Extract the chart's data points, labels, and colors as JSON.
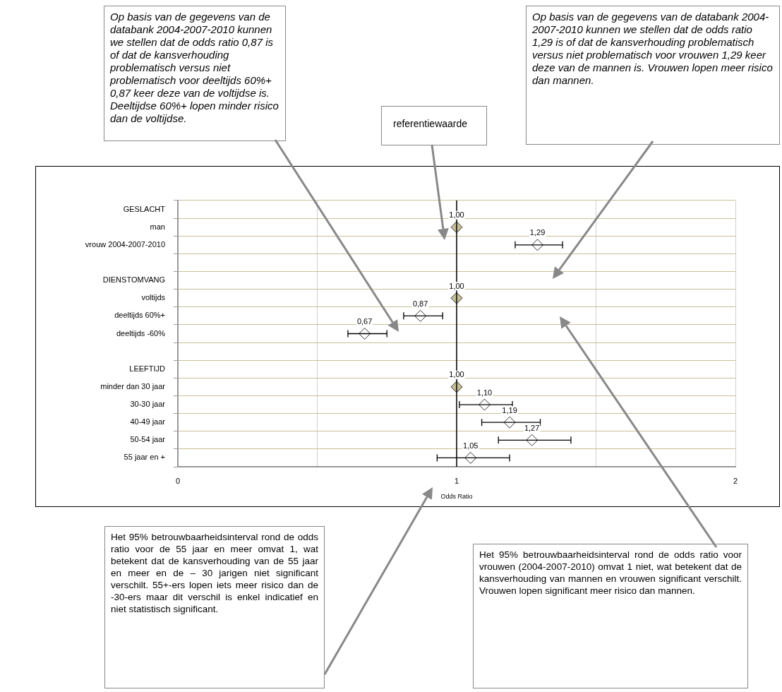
{
  "chart_data": {
    "type": "scatter",
    "orientation": "horizontal",
    "xlabel": "Odds Ratio",
    "categories": [
      "GESLACHT",
      "man",
      "vrouw 2004-2007-2010",
      null,
      "DIENSTOMVANG",
      "voltijds",
      "deeltijds 60%+",
      "deeltijds -60%",
      null,
      "LEEFTIJD",
      "minder dan 30 jaar",
      "30-30 jaar",
      "40-49 jaar",
      "50-54 jaar",
      "55 jaar en +"
    ],
    "values": [
      null,
      1.0,
      1.29,
      null,
      null,
      1.0,
      0.87,
      0.67,
      null,
      null,
      1.0,
      1.1,
      1.19,
      1.27,
      1.05
    ],
    "colors": [
      "#ffffff",
      "#c8c096",
      "#ffffff",
      "#ffffff",
      "#ffffff",
      "#c8c096",
      "#ffffff",
      "#ffffff",
      "#ffffff",
      "#ffffff",
      "#c8c096",
      "#ffffff",
      "#ffffff",
      "#ffffff",
      "#ffffff"
    ],
    "errors": [
      null,
      null,
      [
        1.21,
        1.38
      ],
      null,
      null,
      null,
      [
        0.81,
        0.95
      ],
      [
        0.61,
        0.75
      ],
      null,
      null,
      null,
      [
        1.01,
        1.2
      ],
      [
        1.09,
        1.3
      ],
      [
        1.15,
        1.41
      ],
      [
        0.93,
        1.19
      ]
    ],
    "value_labels": [
      null,
      "1,00",
      "1,29",
      null,
      null,
      "1,00",
      "0,87",
      "0,67",
      null,
      null,
      "1,00",
      "1,10",
      "1,19",
      "1,27",
      "1,05"
    ],
    "marker": "diamond",
    "grid": true,
    "xlim": [
      0,
      2
    ],
    "xticks": [
      0,
      {
        "value": 0.5,
        "label": null
      },
      1,
      {
        "value": 1.5,
        "label": null
      },
      2
    ],
    "ref_lines": [
      {
        "axis": "x",
        "value": 1,
        "label": "referentiewaarde",
        "color": "#000000"
      }
    ],
    "annotations": [
      "Op basis van de gegevens van de databank 2004-2007-2010 kunnen we stellen dat de odds ratio 0,87 is of dat de kansverhouding problematisch versus niet problematisch voor deeltijds 60%+ 0,87 keer deze van de voltijdse is. Deeltijdse 60%+ lopen minder risico dan de voltijdse.",
      "Op basis van de gegevens van de databank 2004-2007-2010 kunnen we stellen dat de odds ratio 1,29 is of dat de kansverhouding problematisch versus niet problematisch voor vrouwen 1,29 keer deze van de mannen is. Vrouwen lopen meer risico dan mannen.",
      "Het 95% betrouwbaarheidsinterval rond de odds ratio voor de 55 jaar en meer omvat 1, wat betekent dat de kansverhouding van de 55 jaar en meer en de – 30 jarigen niet significant verschilt. 55+-ers lopen iets meer risico dan de -30-ers maar dit verschil is enkel indicatief en niet statistisch significant.",
      "Het 95% betrouwbaarheidsinterval rond de odds ratio voor vrouwen (2004-2007-2010) omvat 1 niet, wat betekent dat de kansverhouding van mannen en vrouwen significant verschilt. Vrouwen lopen significant meer risico dan mannen."
    ]
  }
}
